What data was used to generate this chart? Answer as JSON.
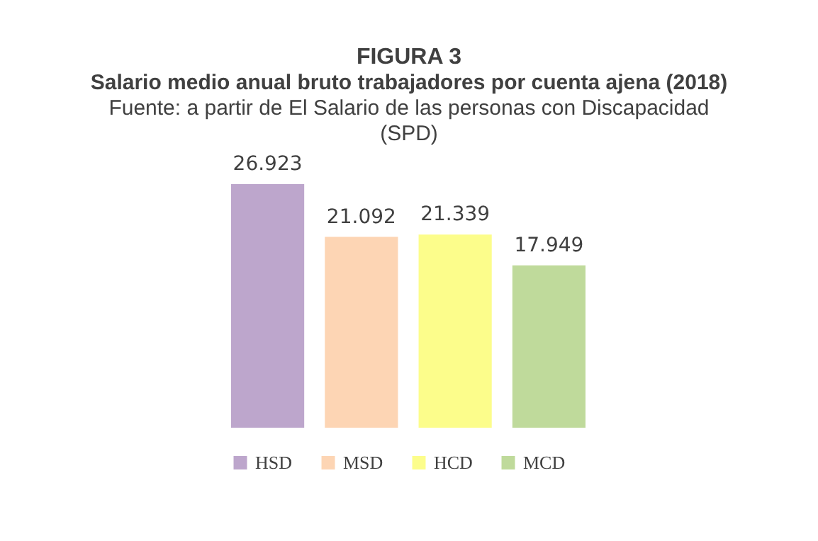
{
  "chart_data": {
    "type": "bar",
    "title": "FIGURA 3",
    "subtitle": "Salario medio anual bruto trabajadores por cuenta ajena (2018)",
    "annotations": [
      "Fuente: a partir de El Salario de las personas con Discapacidad (SPD)"
    ],
    "categories": [
      null
    ],
    "series": [
      {
        "name": "HSD",
        "color": "#bda6cc",
        "values": [
          26923
        ],
        "value_labels": [
          "26.923"
        ]
      },
      {
        "name": "MSD",
        "color": "#fdd5b4",
        "values": [
          21092
        ],
        "value_labels": [
          "21.092"
        ]
      },
      {
        "name": "HCD",
        "color": "#fcfd8b",
        "values": [
          21339
        ],
        "value_labels": [
          "21.339"
        ]
      },
      {
        "name": "MCD",
        "color": "#bfda9b",
        "values": [
          17949
        ],
        "value_labels": [
          "17.949"
        ]
      }
    ],
    "legend": "bottom"
  }
}
